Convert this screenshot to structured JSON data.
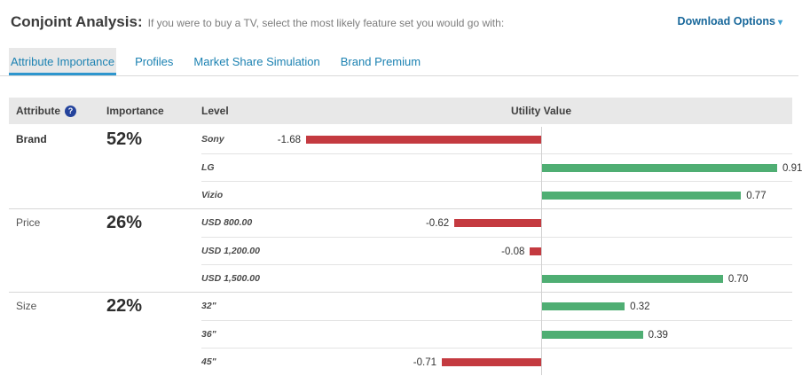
{
  "header": {
    "title": "Conjoint Analysis:",
    "subtitle": "If you were to buy a TV, select the most likely feature set you would go with:",
    "download_label": "Download Options",
    "download_caret": "▾"
  },
  "tabs": [
    {
      "label": "Attribute Importance",
      "active": true
    },
    {
      "label": "Profiles",
      "active": false
    },
    {
      "label": "Market Share Simulation",
      "active": false
    },
    {
      "label": "Brand Premium",
      "active": false
    }
  ],
  "table": {
    "columns": [
      "Attribute",
      "Importance",
      "Level",
      "Utility Value"
    ],
    "help_icon_glyph": "?"
  },
  "colors": {
    "tab_blue": "#1c82b2",
    "tab_underline": "#2e96ce",
    "link_blue": "#17679a",
    "help_badge_blue": "#24439c"
  },
  "chart_data": {
    "type": "bar",
    "orientation": "horizontal",
    "value_column": "Utility Value",
    "negative_color": "#c43a40",
    "positive_color": "#4fae73",
    "neg_axis_max": 1.68,
    "pos_axis_max": 0.91,
    "groups": [
      {
        "attribute": "Brand",
        "importance": "52%",
        "emphasis": true,
        "levels": [
          {
            "label": "Sony",
            "value": -1.68
          },
          {
            "label": "LG",
            "value": 0.91
          },
          {
            "label": "Vizio",
            "value": 0.77
          }
        ]
      },
      {
        "attribute": "Price",
        "importance": "26%",
        "emphasis": false,
        "levels": [
          {
            "label": "USD 800.00",
            "value": -0.62
          },
          {
            "label": "USD 1,200.00",
            "value": -0.08
          },
          {
            "label": "USD 1,500.00",
            "value": 0.7
          }
        ]
      },
      {
        "attribute": "Size",
        "importance": "22%",
        "emphasis": false,
        "levels": [
          {
            "label": "32\"",
            "value": 0.32
          },
          {
            "label": "36\"",
            "value": 0.39
          },
          {
            "label": "45\"",
            "value": -0.71
          }
        ]
      }
    ]
  }
}
